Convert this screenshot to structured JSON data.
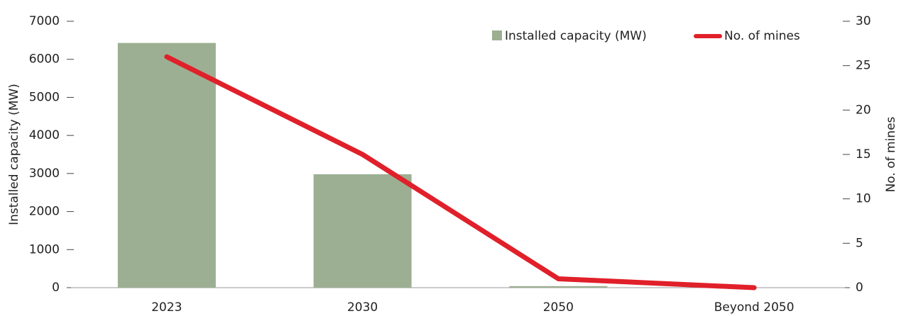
{
  "chart_data": {
    "type": "bar_line",
    "categories": [
      "2023",
      "2030",
      "2050",
      "Beyond 2050"
    ],
    "series": [
      {
        "name": "Installed capacity (MW)",
        "type": "bar",
        "color": "#9caf92",
        "values": [
          6430,
          2980,
          40,
          0
        ]
      },
      {
        "name": "No. of mines",
        "type": "line",
        "axis": "y2",
        "color": "#e0202a",
        "values": [
          26,
          15,
          1,
          0
        ]
      }
    ],
    "ylabel": "Installed capacity (MW)",
    "y2label": "No. of mines",
    "ylim": [
      0,
      7000
    ],
    "yticks": [
      0,
      1000,
      2000,
      3000,
      4000,
      5000,
      6000,
      7000
    ],
    "y2lim": [
      0,
      30
    ],
    "y2ticks": [
      0,
      5,
      10,
      15,
      20,
      25,
      30
    ],
    "legend": "top-right"
  }
}
